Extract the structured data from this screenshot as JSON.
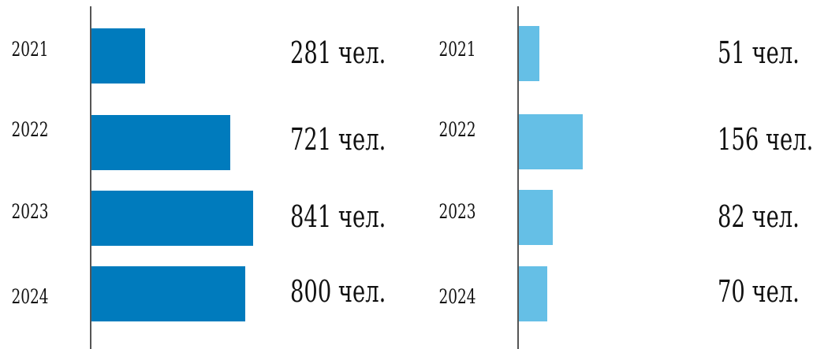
{
  "chart_data": [
    {
      "type": "bar",
      "orientation": "horizontal",
      "categories": [
        "2021",
        "2022",
        "2023",
        "2024"
      ],
      "values": [
        281,
        721,
        841,
        800
      ],
      "value_labels": [
        "281 чел.",
        "721 чел.",
        "841 чел.",
        "800 чел."
      ],
      "color": "#007bbd"
    },
    {
      "type": "bar",
      "orientation": "horizontal",
      "categories": [
        "2021",
        "2022",
        "2023",
        "2024"
      ],
      "values": [
        51,
        156,
        82,
        70
      ],
      "value_labels": [
        "51 чел.",
        "156 чел.",
        "82 чел.",
        "70 чел."
      ],
      "color": "#65bfe6"
    }
  ]
}
